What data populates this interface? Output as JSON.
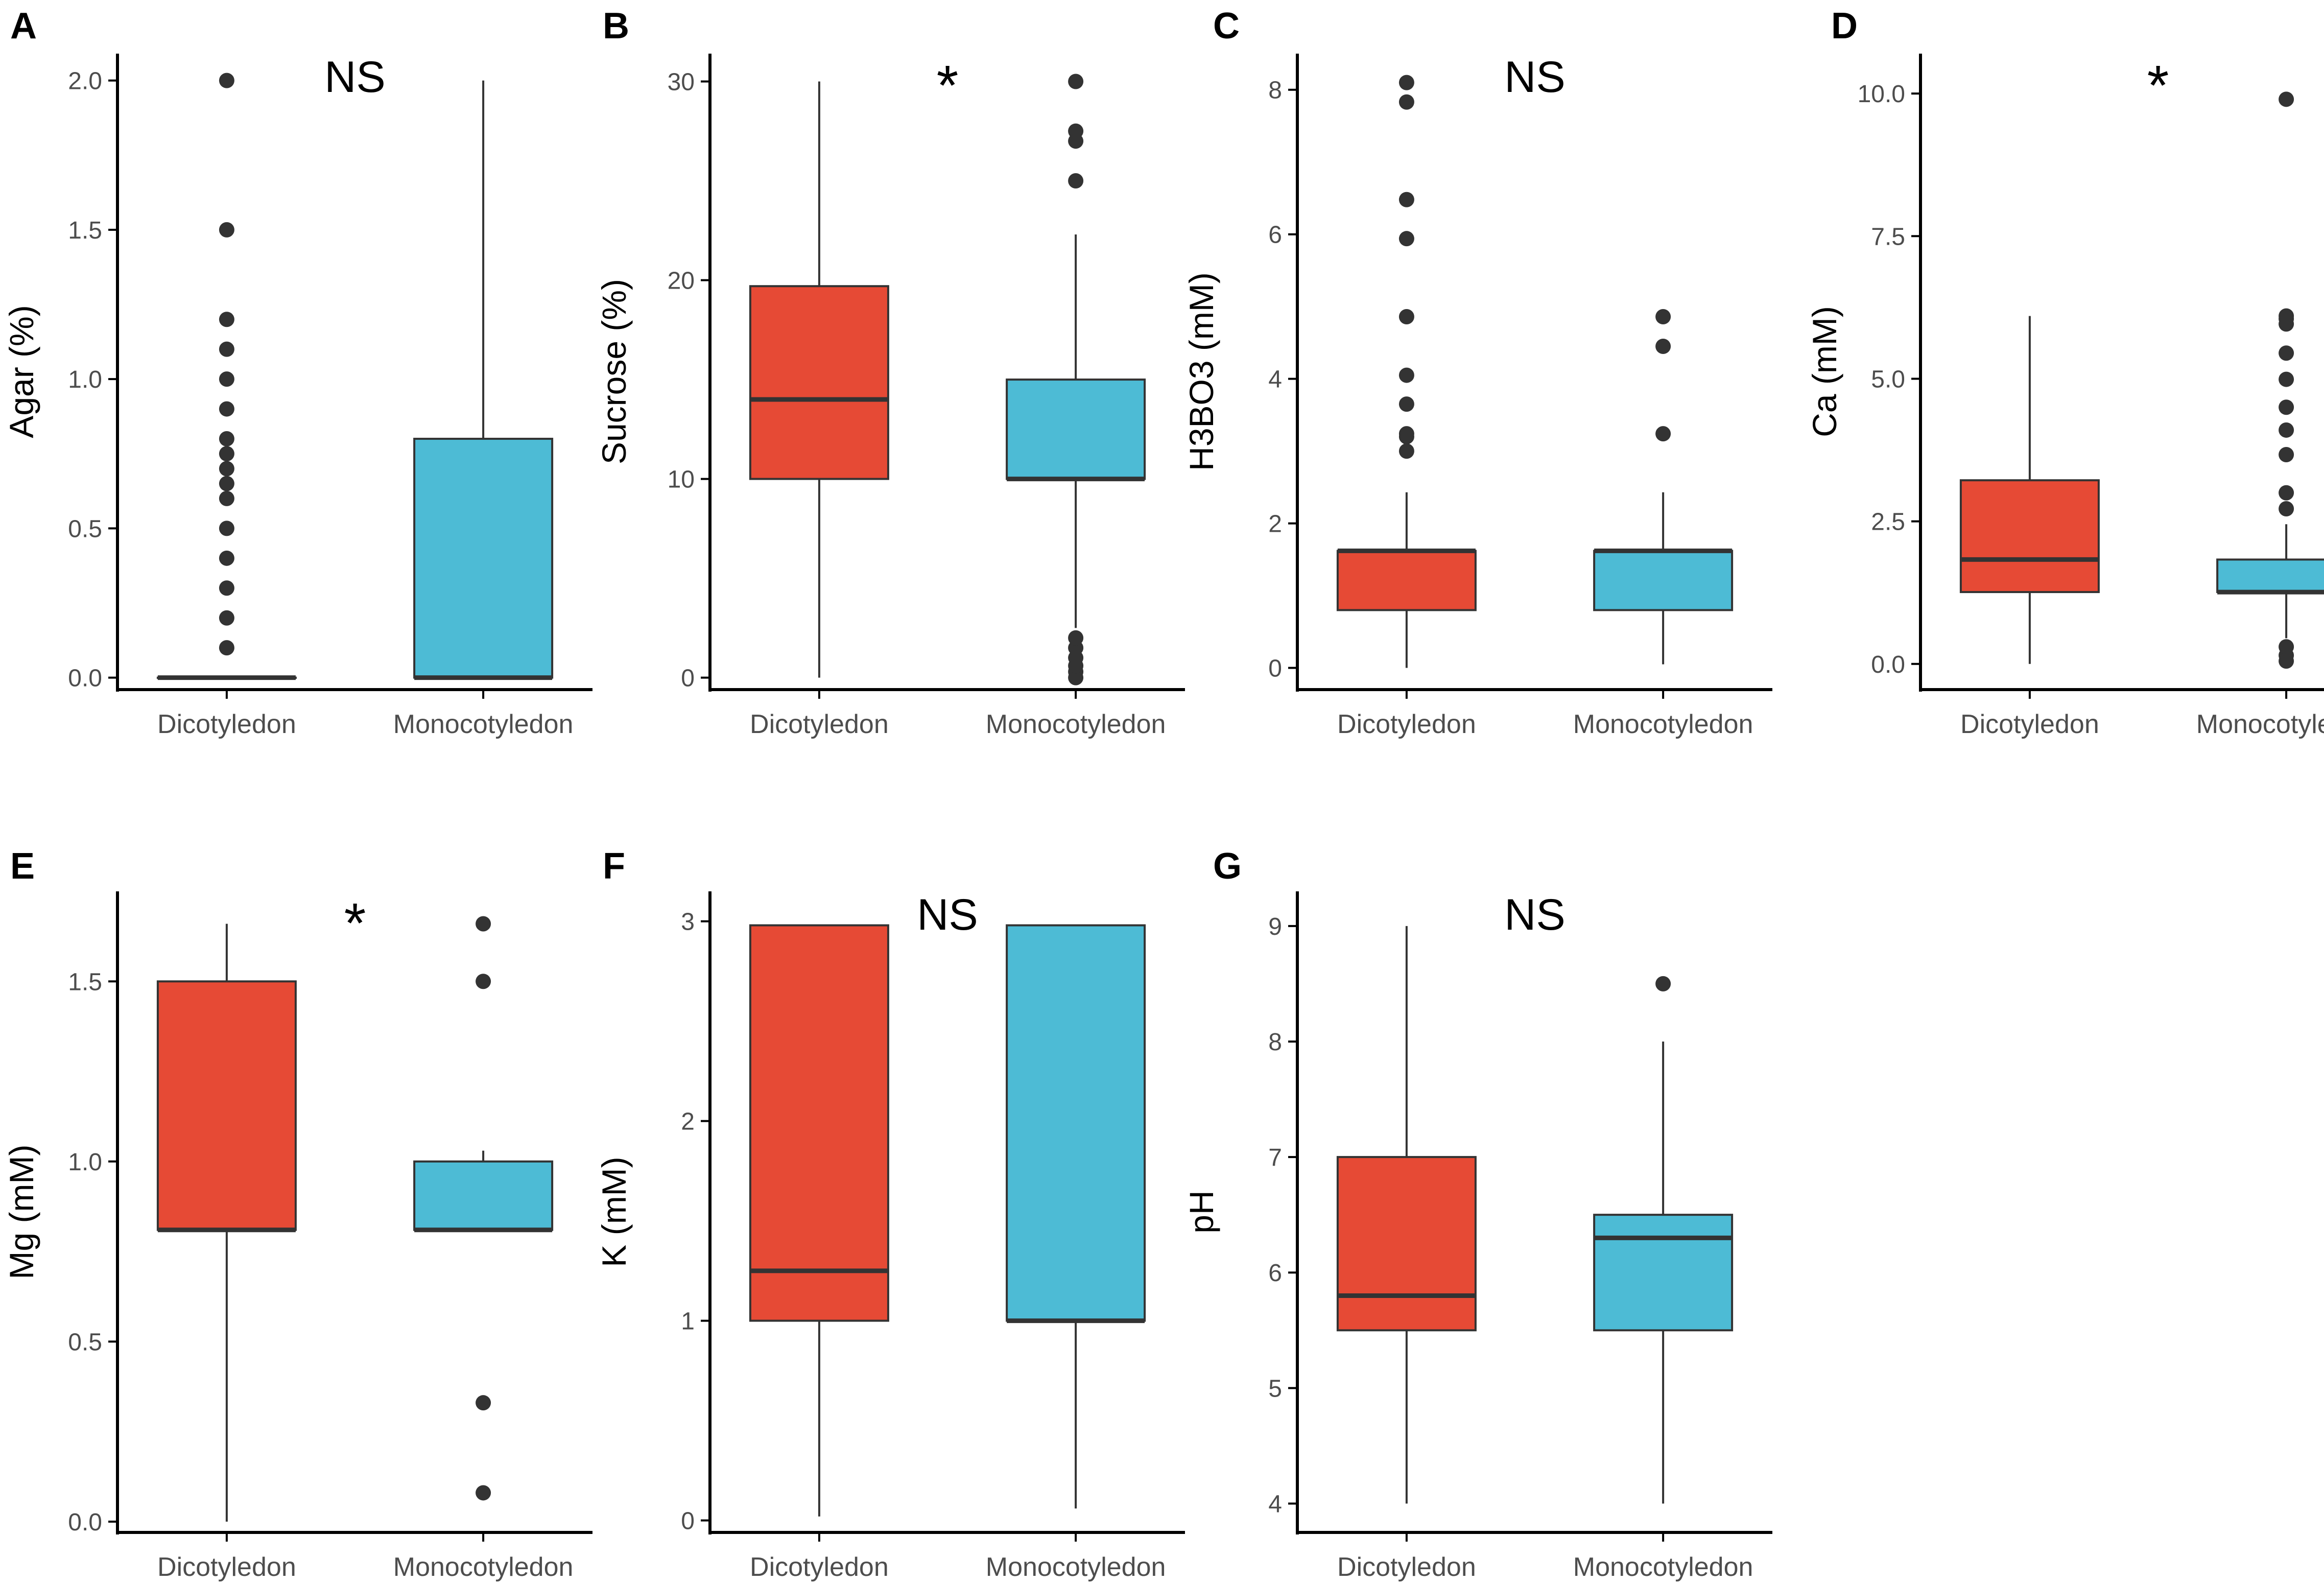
{
  "figure": {
    "colors": {
      "Dicotyledon": "#E64A35",
      "Monocotyledon": "#4DBBD5",
      "axis": "#000000",
      "box_stroke": "#333333",
      "outlier": "#333333",
      "tick_text": "#4d4d4d"
    }
  },
  "chart_data": [
    {
      "panel": "A",
      "type": "box",
      "ylabel": "Agar (%)",
      "significance": "NS",
      "categories": [
        "Dicotyledon",
        "Monocotyledon"
      ],
      "ylim": [
        -0.04,
        2.09
      ],
      "yticks": [
        0.0,
        0.5,
        1.0,
        1.5,
        2.0
      ],
      "ytick_labels": [
        "0.0",
        "0.5",
        "1.0",
        "1.5",
        "2.0"
      ],
      "boxes": [
        {
          "group": "Dicotyledon",
          "q1": 0,
          "median": 0,
          "q3": 0,
          "whisker_low": 0,
          "whisker_high": 0,
          "outliers": [
            0.1,
            0.2,
            0.3,
            0.4,
            0.5,
            0.6,
            0.65,
            0.7,
            0.75,
            0.8,
            0.9,
            1.0,
            1.1,
            1.2,
            1.5,
            2.0
          ]
        },
        {
          "group": "Monocotyledon",
          "q1": 0,
          "median": 0,
          "q3": 0.8,
          "whisker_low": 0,
          "whisker_high": 2.0,
          "outliers": []
        }
      ]
    },
    {
      "panel": "B",
      "type": "box",
      "ylabel": "Sucrose (%)",
      "significance": "*",
      "categories": [
        "Dicotyledon",
        "Monocotyledon"
      ],
      "ylim": [
        -0.6,
        31.4
      ],
      "yticks": [
        0,
        10,
        20,
        30
      ],
      "ytick_labels": [
        "0",
        "10",
        "20",
        "30"
      ],
      "boxes": [
        {
          "group": "Dicotyledon",
          "q1": 10,
          "median": 14,
          "q3": 19.7,
          "whisker_low": 0,
          "whisker_high": 30,
          "outliers": []
        },
        {
          "group": "Monocotyledon",
          "q1": 10,
          "median": 10,
          "q3": 15,
          "whisker_low": 2.5,
          "whisker_high": 22.3,
          "outliers": [
            0,
            0.3,
            0.6,
            1.0,
            1.5,
            2.0,
            25,
            27,
            27.5,
            30
          ]
        }
      ]
    },
    {
      "panel": "C",
      "type": "box",
      "ylabel": "H3BO3 (mM)",
      "significance": "NS",
      "categories": [
        "Dicotyledon",
        "Monocotyledon"
      ],
      "ylim": [
        -0.3,
        8.5
      ],
      "yticks": [
        0,
        2,
        4,
        6,
        8
      ],
      "ytick_labels": [
        "0",
        "2",
        "4",
        "6",
        "8"
      ],
      "boxes": [
        {
          "group": "Dicotyledon",
          "q1": 0.8,
          "median": 1.62,
          "q3": 1.62,
          "whisker_low": 0,
          "whisker_high": 2.43,
          "outliers": [
            3.0,
            3.2,
            3.24,
            3.65,
            4.05,
            4.86,
            5.94,
            6.48,
            7.83,
            8.1
          ]
        },
        {
          "group": "Monocotyledon",
          "q1": 0.8,
          "median": 1.62,
          "q3": 1.62,
          "whisker_low": 0.05,
          "whisker_high": 2.43,
          "outliers": [
            3.24,
            4.45,
            4.86
          ]
        }
      ]
    },
    {
      "panel": "D",
      "type": "box",
      "ylabel": "Ca (mM)",
      "significance": "*",
      "categories": [
        "Dicotyledon",
        "Monocotyledon"
      ],
      "ylim": [
        -0.45,
        10.7
      ],
      "yticks": [
        0.0,
        2.5,
        5.0,
        7.5,
        10.0
      ],
      "ytick_labels": [
        "0.0",
        "2.5",
        "5.0",
        "7.5",
        "10.0"
      ],
      "boxes": [
        {
          "group": "Dicotyledon",
          "q1": 1.26,
          "median": 1.83,
          "q3": 3.22,
          "whisker_low": 0,
          "whisker_high": 6.1,
          "outliers": []
        },
        {
          "group": "Monocotyledon",
          "q1": 1.26,
          "median": 1.26,
          "q3": 1.83,
          "whisker_low": 0.45,
          "whisker_high": 2.45,
          "outliers": [
            0.05,
            0.15,
            0.3,
            2.72,
            3.0,
            3.67,
            4.1,
            4.5,
            4.99,
            5.45,
            5.96,
            6.05,
            6.1,
            9.9
          ]
        }
      ]
    },
    {
      "panel": "E",
      "type": "box",
      "ylabel": "Mg (mM)",
      "significance": "*",
      "categories": [
        "Dicotyledon",
        "Monocotyledon"
      ],
      "ylim": [
        -0.03,
        1.75
      ],
      "yticks": [
        0.0,
        0.5,
        1.0,
        1.5
      ],
      "ytick_labels": [
        "0.0",
        "0.5",
        "1.0",
        "1.5"
      ],
      "boxes": [
        {
          "group": "Dicotyledon",
          "q1": 0.81,
          "median": 0.81,
          "q3": 1.5,
          "whisker_low": 0,
          "whisker_high": 1.66,
          "outliers": []
        },
        {
          "group": "Monocotyledon",
          "q1": 0.81,
          "median": 0.81,
          "q3": 1.0,
          "whisker_low": 0.81,
          "whisker_high": 1.03,
          "outliers": [
            0.08,
            0.33,
            1.5,
            1.66
          ]
        }
      ]
    },
    {
      "panel": "F",
      "type": "box",
      "ylabel": "K (mM)",
      "significance": "NS",
      "categories": [
        "Dicotyledon",
        "Monocotyledon"
      ],
      "ylim": [
        -0.06,
        3.15
      ],
      "yticks": [
        0,
        1,
        2,
        3
      ],
      "ytick_labels": [
        "0",
        "1",
        "2",
        "3"
      ],
      "boxes": [
        {
          "group": "Dicotyledon",
          "q1": 1.0,
          "median": 1.25,
          "q3": 2.98,
          "whisker_low": 0.02,
          "whisker_high": 2.98,
          "outliers": []
        },
        {
          "group": "Monocotyledon",
          "q1": 1.0,
          "median": 1.0,
          "q3": 2.98,
          "whisker_low": 0.06,
          "whisker_high": 2.98,
          "outliers": []
        }
      ]
    },
    {
      "panel": "G",
      "type": "box",
      "ylabel": "pH",
      "significance": "NS",
      "categories": [
        "Dicotyledon",
        "Monocotyledon"
      ],
      "ylim": [
        3.75,
        9.3
      ],
      "yticks": [
        4,
        5,
        6,
        7,
        8,
        9
      ],
      "ytick_labels": [
        "4",
        "5",
        "6",
        "7",
        "8",
        "9"
      ],
      "boxes": [
        {
          "group": "Dicotyledon",
          "q1": 5.5,
          "median": 5.8,
          "q3": 7.0,
          "whisker_low": 4.0,
          "whisker_high": 9.0,
          "outliers": []
        },
        {
          "group": "Monocotyledon",
          "q1": 5.5,
          "median": 6.3,
          "q3": 6.5,
          "whisker_low": 4.0,
          "whisker_high": 8.0,
          "outliers": [
            8.5
          ]
        }
      ]
    }
  ]
}
